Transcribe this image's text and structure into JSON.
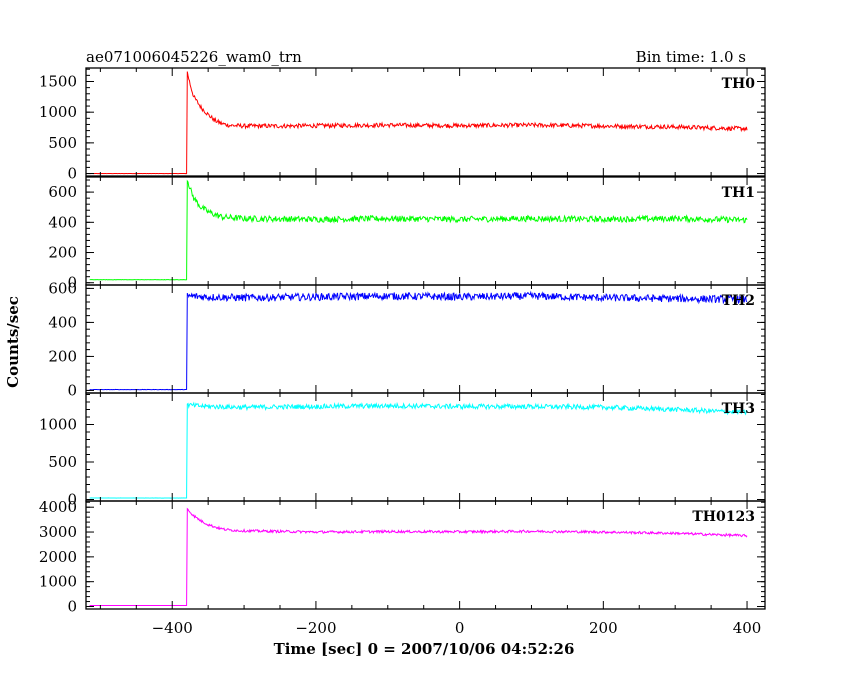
{
  "header": {
    "title": "ae071006045226_wam0_trn",
    "bin_time": "Bin time: 1.0 s"
  },
  "chart_data": {
    "type": "line",
    "title": "ae071006045226_wam0_trn",
    "subtitle": "Bin time: 1.0 s",
    "xlabel": "Time [sec] 0 = 2007/10/06 04:52:26",
    "ylabel": "Counts/sec",
    "xlim": [
      -520,
      425
    ],
    "x_ticks": [
      -400,
      -200,
      0,
      200,
      400
    ],
    "x_tick_labels": [
      "−400",
      "−200",
      "0",
      "200",
      "400"
    ],
    "grid": false,
    "panels": [
      {
        "name": "TH0",
        "color": "#ff0000",
        "ylim": [
          -40,
          1720
        ],
        "y_ticks": [
          0,
          500,
          1000,
          1500
        ],
        "y_tick_labels": [
          "0",
          "500",
          "1000",
          "1500"
        ],
        "data": {
          "x": [
            -515,
            -380,
            -379,
            -375,
            -370,
            -360,
            -350,
            -340,
            -330,
            -320,
            -300,
            -250,
            -200,
            -100,
            0,
            100,
            200,
            300,
            400
          ],
          "y": [
            0,
            0,
            1650,
            1450,
            1250,
            1080,
            960,
            860,
            810,
            785,
            775,
            775,
            780,
            790,
            780,
            790,
            775,
            760,
            730
          ]
        },
        "noise": 35
      },
      {
        "name": "TH1",
        "color": "#00ff00",
        "ylim": [
          -15,
          700
        ],
        "y_ticks": [
          0,
          200,
          400,
          600
        ],
        "y_tick_labels": [
          "0",
          "200",
          "400",
          "600"
        ],
        "data": {
          "x": [
            -515,
            -380,
            -379,
            -375,
            -370,
            -360,
            -350,
            -340,
            -330,
            -300,
            -200,
            -100,
            0,
            100,
            200,
            300,
            400
          ],
          "y": [
            20,
            20,
            690,
            620,
            560,
            500,
            470,
            450,
            435,
            425,
            420,
            425,
            420,
            425,
            420,
            425,
            415
          ]
        },
        "noise": 20
      },
      {
        "name": "TH2",
        "color": "#0000ff",
        "ylim": [
          -15,
          620
        ],
        "y_ticks": [
          0,
          200,
          400,
          600
        ],
        "y_tick_labels": [
          "0",
          "200",
          "400",
          "600"
        ],
        "data": {
          "x": [
            -515,
            -380,
            -379,
            -350,
            -300,
            -200,
            -100,
            0,
            100,
            200,
            300,
            400
          ],
          "y": [
            5,
            5,
            555,
            550,
            545,
            550,
            555,
            550,
            555,
            545,
            540,
            535
          ]
        },
        "noise": 22
      },
      {
        "name": "TH3",
        "color": "#00ffff",
        "ylim": [
          -20,
          1420
        ],
        "y_ticks": [
          0,
          500,
          1000
        ],
        "y_tick_labels": [
          "0",
          "500",
          "1000"
        ],
        "data": {
          "x": [
            -515,
            -380,
            -379,
            -350,
            -300,
            -200,
            -100,
            0,
            100,
            200,
            300,
            400
          ],
          "y": [
            20,
            20,
            1260,
            1240,
            1230,
            1240,
            1250,
            1240,
            1240,
            1230,
            1200,
            1160
          ]
        },
        "noise": 32
      },
      {
        "name": "TH0123",
        "color": "#ff00ff",
        "ylim": [
          -100,
          4250
        ],
        "y_ticks": [
          0,
          1000,
          2000,
          3000,
          4000
        ],
        "y_tick_labels": [
          "0",
          "1000",
          "2000",
          "3000",
          "4000"
        ],
        "data": {
          "x": [
            -515,
            -380,
            -379,
            -375,
            -370,
            -360,
            -350,
            -340,
            -330,
            -320,
            -300,
            -200,
            -100,
            0,
            100,
            200,
            300,
            400
          ],
          "y": [
            40,
            40,
            3950,
            3800,
            3650,
            3450,
            3300,
            3200,
            3120,
            3080,
            3050,
            3000,
            3020,
            3010,
            3030,
            3000,
            2950,
            2850
          ]
        },
        "noise": 50
      }
    ]
  }
}
